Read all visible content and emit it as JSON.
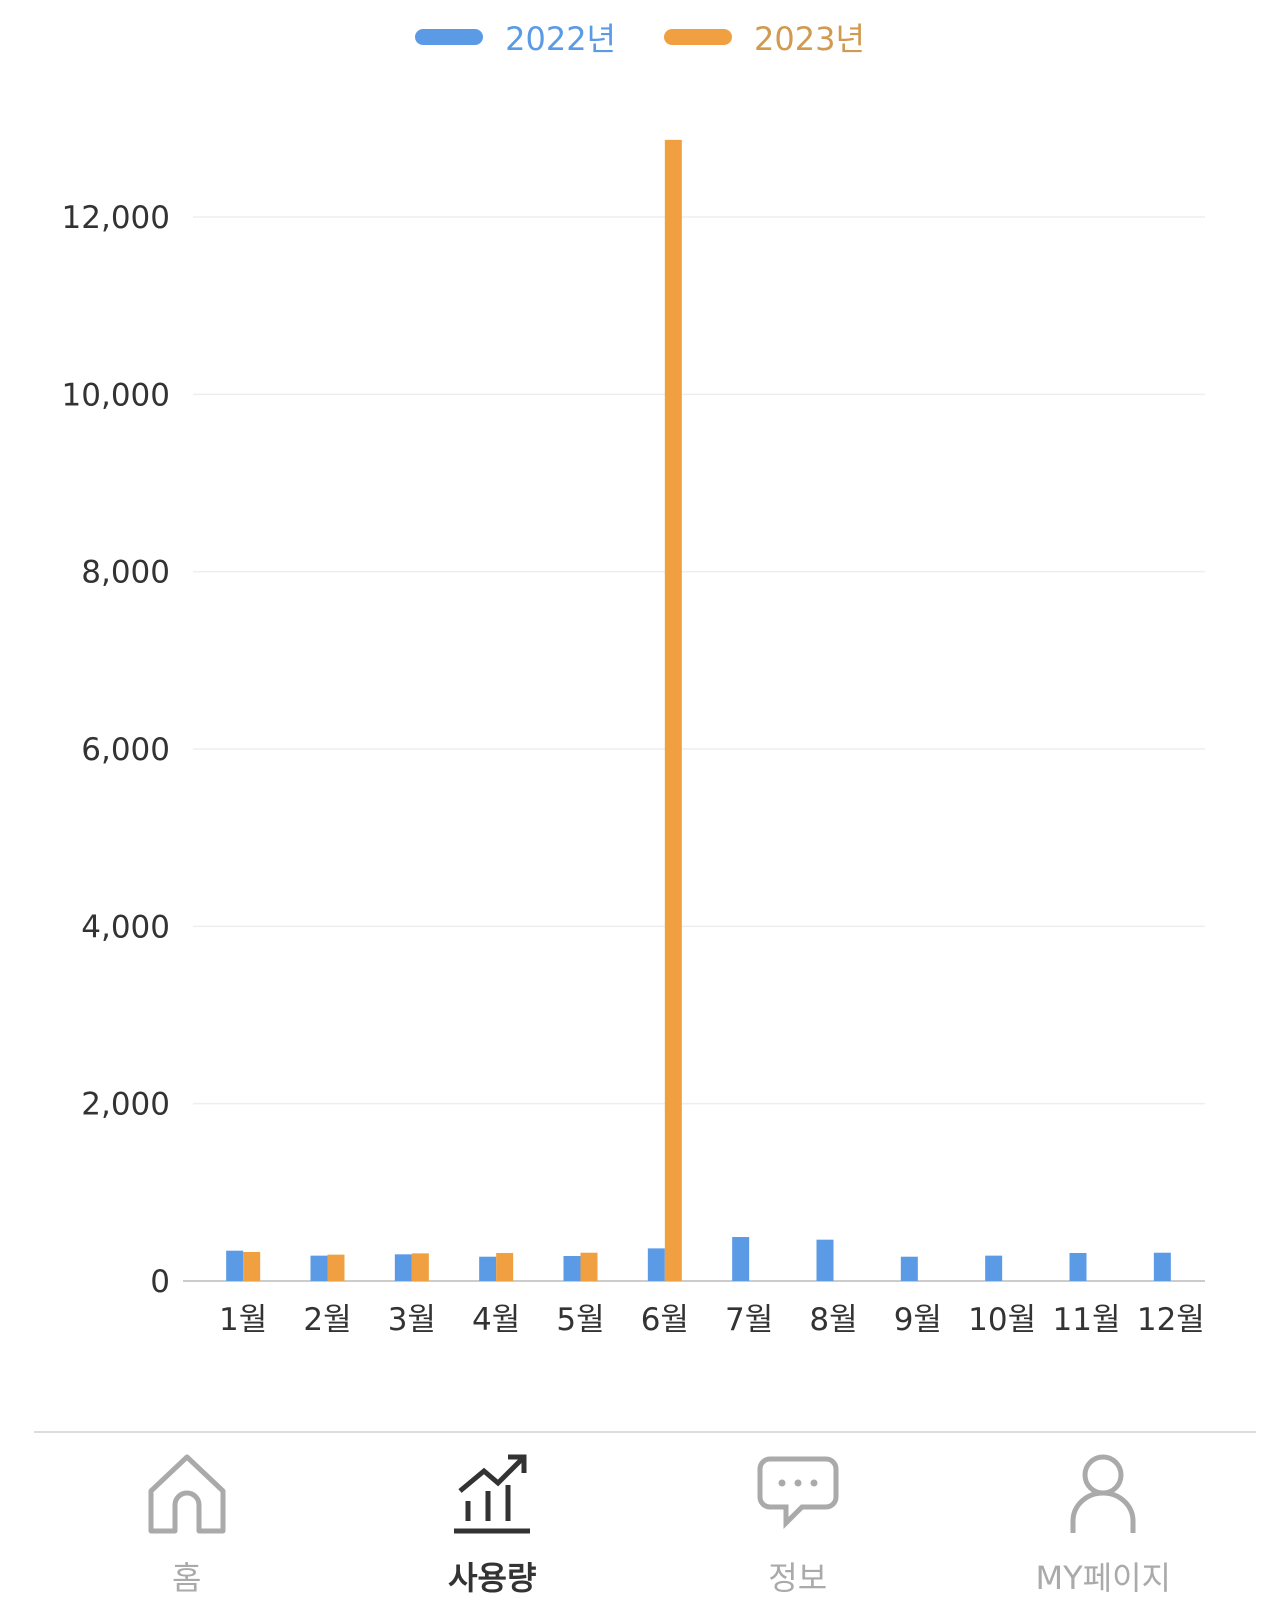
{
  "chart_data": {
    "type": "bar",
    "categories": [
      "1월",
      "2월",
      "3월",
      "4월",
      "5월",
      "6월",
      "7월",
      "8월",
      "9월",
      "10월",
      "11월",
      "12월"
    ],
    "series": [
      {
        "name": "2022년",
        "color": "#5b9be6",
        "values": [
          342,
          286,
          301,
          274,
          282,
          368,
          496,
          466,
          274,
          286,
          316,
          319
        ]
      },
      {
        "name": "2023년",
        "color": "#f0a040",
        "values": [
          327,
          297,
          312,
          316,
          319,
          12870,
          null,
          null,
          null,
          null,
          null,
          null
        ]
      }
    ],
    "ylim": [
      0,
      12000
    ],
    "yticks": [
      0,
      2000,
      4000,
      6000,
      8000,
      10000,
      12000
    ],
    "ytick_labels": [
      "0",
      "2,000",
      "4,000",
      "6,000",
      "8,000",
      "10,000",
      "12,000"
    ],
    "grid": true,
    "legend": "top"
  },
  "nav": {
    "items": [
      {
        "label": "홈",
        "icon": "home-icon",
        "active": false
      },
      {
        "label": "사용량",
        "icon": "chart-icon",
        "active": true
      },
      {
        "label": "정보",
        "icon": "chat-icon",
        "active": false
      },
      {
        "label": "MY페이지",
        "icon": "user-icon",
        "active": false
      }
    ]
  }
}
